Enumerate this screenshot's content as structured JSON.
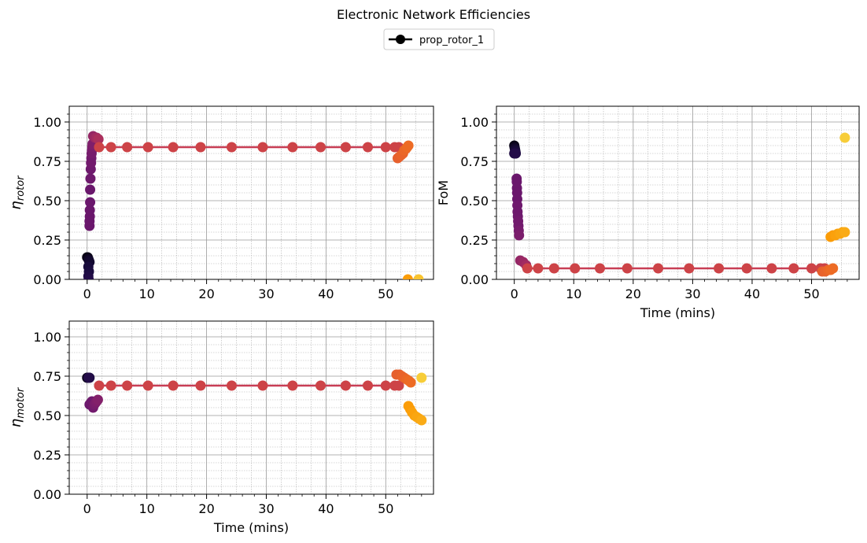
{
  "chart_data": {
    "type": "scatter",
    "title": "Electronic Network Efficiencies",
    "legend": {
      "placement": "top-center",
      "entries": [
        {
          "name": "prop_rotor_1",
          "color": "#000000",
          "marker": "circle-line"
        }
      ]
    },
    "colormap": "inferno",
    "colormap_stops": [
      "#000004",
      "#1b0c41",
      "#4a0c6b",
      "#781c6d",
      "#a52c60",
      "#cf4446",
      "#ed6925",
      "#fb9b06",
      "#f7d13d",
      "#fcffa4"
    ],
    "line_color": "#c83e55",
    "grid": {
      "major": true,
      "minor": true
    },
    "panels": [
      {
        "id": "rotor",
        "ylabel_symbol": "η",
        "ylabel_sub": "rotor",
        "xlabel": "",
        "xlim": [
          -3,
          58
        ],
        "ylim": [
          0,
          1.1
        ],
        "xticks": [
          0,
          10,
          20,
          30,
          40,
          50
        ],
        "yticks": [
          0.0,
          0.25,
          0.5,
          0.75,
          1.0
        ],
        "points": [
          [
            0.0,
            0.14,
            0.02
          ],
          [
            0.1,
            0.14,
            0.03
          ],
          [
            0.2,
            0.13,
            0.05
          ],
          [
            0.3,
            0.12,
            0.07
          ],
          [
            0.4,
            0.11,
            0.08
          ],
          [
            0.2,
            0.08,
            0.1
          ],
          [
            0.3,
            0.05,
            0.11
          ],
          [
            0.2,
            0.02,
            0.12
          ],
          [
            0.25,
            0.0,
            0.13
          ],
          [
            0.4,
            0.34,
            0.3
          ],
          [
            0.4,
            0.37,
            0.3
          ],
          [
            0.45,
            0.4,
            0.3
          ],
          [
            0.45,
            0.44,
            0.3
          ],
          [
            0.5,
            0.49,
            0.3
          ],
          [
            0.5,
            0.57,
            0.3
          ],
          [
            0.55,
            0.64,
            0.31
          ],
          [
            0.6,
            0.7,
            0.31
          ],
          [
            0.65,
            0.74,
            0.32
          ],
          [
            0.7,
            0.77,
            0.32
          ],
          [
            0.75,
            0.8,
            0.33
          ],
          [
            0.8,
            0.82,
            0.33
          ],
          [
            0.85,
            0.84,
            0.34
          ],
          [
            0.9,
            0.86,
            0.35
          ],
          [
            1.0,
            0.91,
            0.4
          ],
          [
            1.3,
            0.9,
            0.42
          ],
          [
            1.6,
            0.9,
            0.44
          ],
          [
            1.9,
            0.89,
            0.46
          ],
          [
            2.0,
            0.84,
            0.55
          ],
          [
            4.0,
            0.84,
            0.55
          ],
          [
            6.7,
            0.84,
            0.55
          ],
          [
            10.2,
            0.84,
            0.55
          ],
          [
            14.4,
            0.84,
            0.55
          ],
          [
            19.0,
            0.84,
            0.55
          ],
          [
            24.2,
            0.84,
            0.55
          ],
          [
            29.4,
            0.84,
            0.55
          ],
          [
            34.4,
            0.84,
            0.55
          ],
          [
            39.1,
            0.84,
            0.55
          ],
          [
            43.3,
            0.84,
            0.55
          ],
          [
            47.0,
            0.84,
            0.55
          ],
          [
            50.0,
            0.84,
            0.55
          ],
          [
            51.5,
            0.84,
            0.55
          ],
          [
            52.2,
            0.84,
            0.55
          ],
          [
            52.0,
            0.77,
            0.64
          ],
          [
            52.3,
            0.78,
            0.64
          ],
          [
            52.6,
            0.79,
            0.65
          ],
          [
            52.9,
            0.8,
            0.65
          ],
          [
            53.1,
            0.82,
            0.66
          ],
          [
            53.4,
            0.83,
            0.66
          ],
          [
            53.6,
            0.84,
            0.67
          ],
          [
            53.8,
            0.85,
            0.67
          ],
          [
            53.7,
            0.0,
            0.78
          ],
          [
            55.5,
            0.0,
            0.86
          ]
        ],
        "line": [
          [
            2.0,
            0.84
          ],
          [
            52.2,
            0.84
          ]
        ]
      },
      {
        "id": "fom",
        "ylabel": "FoM",
        "xlabel": "Time (mins)",
        "xlim": [
          -3,
          58
        ],
        "ylim": [
          0,
          1.1
        ],
        "xticks": [
          0,
          10,
          20,
          30,
          40,
          50
        ],
        "yticks": [
          0.0,
          0.25,
          0.5,
          0.75,
          1.0
        ],
        "points": [
          [
            0.0,
            0.85,
            0.03
          ],
          [
            0.05,
            0.84,
            0.05
          ],
          [
            0.1,
            0.83,
            0.07
          ],
          [
            0.15,
            0.82,
            0.09
          ],
          [
            0.2,
            0.81,
            0.1
          ],
          [
            0.25,
            0.8,
            0.11
          ],
          [
            0.0,
            0.8,
            0.12
          ],
          [
            0.15,
            0.8,
            0.13
          ],
          [
            0.4,
            0.64,
            0.3
          ],
          [
            0.42,
            0.62,
            0.3
          ],
          [
            0.45,
            0.58,
            0.3
          ],
          [
            0.48,
            0.55,
            0.3
          ],
          [
            0.5,
            0.51,
            0.3
          ],
          [
            0.52,
            0.47,
            0.31
          ],
          [
            0.55,
            0.43,
            0.31
          ],
          [
            0.6,
            0.4,
            0.31
          ],
          [
            0.65,
            0.37,
            0.32
          ],
          [
            0.7,
            0.34,
            0.32
          ],
          [
            0.75,
            0.31,
            0.33
          ],
          [
            0.8,
            0.28,
            0.34
          ],
          [
            1.0,
            0.12,
            0.4
          ],
          [
            1.5,
            0.11,
            0.42
          ],
          [
            2.0,
            0.09,
            0.44
          ],
          [
            2.2,
            0.07,
            0.55
          ],
          [
            4.0,
            0.07,
            0.55
          ],
          [
            6.7,
            0.07,
            0.55
          ],
          [
            10.2,
            0.07,
            0.55
          ],
          [
            14.4,
            0.07,
            0.55
          ],
          [
            19.0,
            0.07,
            0.55
          ],
          [
            24.2,
            0.07,
            0.55
          ],
          [
            29.4,
            0.07,
            0.55
          ],
          [
            34.4,
            0.07,
            0.55
          ],
          [
            39.1,
            0.07,
            0.55
          ],
          [
            43.3,
            0.07,
            0.55
          ],
          [
            47.0,
            0.07,
            0.55
          ],
          [
            50.0,
            0.07,
            0.55
          ],
          [
            51.5,
            0.07,
            0.55
          ],
          [
            52.2,
            0.07,
            0.55
          ],
          [
            51.8,
            0.05,
            0.64
          ],
          [
            52.3,
            0.05,
            0.65
          ],
          [
            52.8,
            0.06,
            0.66
          ],
          [
            53.2,
            0.06,
            0.67
          ],
          [
            53.6,
            0.07,
            0.67
          ],
          [
            53.2,
            0.27,
            0.78
          ],
          [
            53.6,
            0.28,
            0.78
          ],
          [
            54.0,
            0.28,
            0.79
          ],
          [
            54.4,
            0.29,
            0.79
          ],
          [
            54.8,
            0.29,
            0.8
          ],
          [
            55.2,
            0.3,
            0.8
          ],
          [
            55.6,
            0.3,
            0.81
          ],
          [
            55.6,
            0.9,
            0.88
          ]
        ],
        "line": [
          [
            2.2,
            0.07
          ],
          [
            52.2,
            0.07
          ]
        ]
      },
      {
        "id": "motor",
        "ylabel_symbol": "η",
        "ylabel_sub": "motor",
        "xlabel": "Time (mins)",
        "xlim": [
          -3,
          58
        ],
        "ylim": [
          0,
          1.1
        ],
        "xticks": [
          0,
          10,
          20,
          30,
          40,
          50
        ],
        "yticks": [
          0.0,
          0.25,
          0.5,
          0.75,
          1.0
        ],
        "points": [
          [
            0.0,
            0.74,
            0.03
          ],
          [
            0.1,
            0.74,
            0.05
          ],
          [
            0.2,
            0.74,
            0.07
          ],
          [
            0.3,
            0.74,
            0.09
          ],
          [
            0.4,
            0.74,
            0.11
          ],
          [
            0.25,
            0.74,
            0.13
          ],
          [
            0.4,
            0.57,
            0.3
          ],
          [
            0.6,
            0.58,
            0.31
          ],
          [
            0.8,
            0.59,
            0.31
          ],
          [
            1.0,
            0.55,
            0.32
          ],
          [
            1.2,
            0.57,
            0.33
          ],
          [
            1.4,
            0.58,
            0.34
          ],
          [
            1.6,
            0.59,
            0.35
          ],
          [
            1.8,
            0.6,
            0.36
          ],
          [
            2.0,
            0.69,
            0.55
          ],
          [
            4.0,
            0.69,
            0.55
          ],
          [
            6.7,
            0.69,
            0.55
          ],
          [
            10.2,
            0.69,
            0.55
          ],
          [
            14.4,
            0.69,
            0.55
          ],
          [
            19.0,
            0.69,
            0.55
          ],
          [
            24.2,
            0.69,
            0.55
          ],
          [
            29.4,
            0.69,
            0.55
          ],
          [
            34.4,
            0.69,
            0.55
          ],
          [
            39.1,
            0.69,
            0.55
          ],
          [
            43.3,
            0.69,
            0.55
          ],
          [
            47.0,
            0.69,
            0.55
          ],
          [
            50.0,
            0.69,
            0.55
          ],
          [
            51.5,
            0.69,
            0.55
          ],
          [
            52.2,
            0.69,
            0.55
          ],
          [
            51.8,
            0.76,
            0.64
          ],
          [
            52.3,
            0.76,
            0.64
          ],
          [
            52.7,
            0.75,
            0.65
          ],
          [
            53.1,
            0.74,
            0.65
          ],
          [
            53.5,
            0.73,
            0.66
          ],
          [
            53.9,
            0.72,
            0.67
          ],
          [
            54.2,
            0.71,
            0.67
          ],
          [
            53.8,
            0.56,
            0.78
          ],
          [
            54.1,
            0.54,
            0.78
          ],
          [
            54.4,
            0.52,
            0.79
          ],
          [
            54.8,
            0.5,
            0.79
          ],
          [
            55.2,
            0.49,
            0.8
          ],
          [
            55.6,
            0.48,
            0.8
          ],
          [
            56.0,
            0.47,
            0.81
          ],
          [
            56.0,
            0.74,
            0.88
          ]
        ],
        "line": [
          [
            2.0,
            0.69
          ],
          [
            52.2,
            0.69
          ]
        ]
      }
    ]
  }
}
